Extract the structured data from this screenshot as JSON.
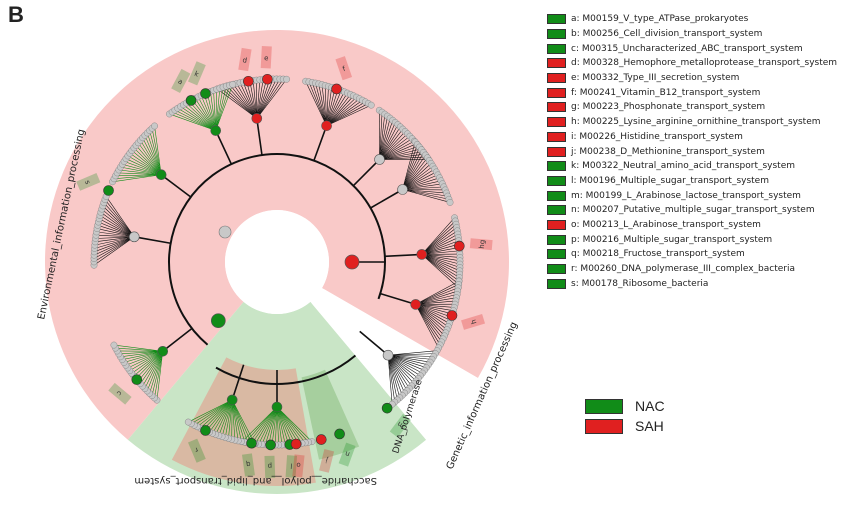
{
  "panel_label": "B",
  "colors": {
    "nac": "#118c18",
    "sah": "#e02020",
    "env_sector": "#f9c9c8",
    "gen_sector": "#c9e5c6",
    "sac_sector": "#d9b9a3",
    "dna_sector": "#a6cf9e",
    "node_gray": "#c8c8c8",
    "edge": "#111111"
  },
  "sectors": {
    "environmental": "Environmental_information_processing",
    "genetic": "Genetic_information_processing",
    "saccharide": "Saccharide__polyol__and_lipid_transport_system",
    "dna_polymerase": "DNA_polymerase"
  },
  "legend": {
    "items": [
      {
        "letter": "a",
        "color": "nac",
        "label": "a: M00159_V_type_ATPase_prokaryotes"
      },
      {
        "letter": "b",
        "color": "nac",
        "label": "b: M00256_Cell_division_transport_system"
      },
      {
        "letter": "c",
        "color": "nac",
        "label": "c: M00315_Uncharacterized_ABC_transport_system"
      },
      {
        "letter": "d",
        "color": "sah",
        "label": "d: M00328_Hemophore_metalloprotease_transport_system"
      },
      {
        "letter": "e",
        "color": "sah",
        "label": "e: M00332_Type_III_secretion_system"
      },
      {
        "letter": "f",
        "color": "sah",
        "label": "f: M00241_Vitamin_B12_transport_system"
      },
      {
        "letter": "g",
        "color": "sah",
        "label": "g: M00223_Phosphonate_transport_system"
      },
      {
        "letter": "h",
        "color": "sah",
        "label": "h: M00225_Lysine_arginine_ornithine_transport_system"
      },
      {
        "letter": "i",
        "color": "sah",
        "label": "i: M00226_Histidine_transport_system"
      },
      {
        "letter": "j",
        "color": "sah",
        "label": "j: M00238_D_Methionine_transport_system"
      },
      {
        "letter": "k",
        "color": "nac",
        "label": "k: M00322_Neutral_amino_acid_transport_system"
      },
      {
        "letter": "l",
        "color": "nac",
        "label": "l: M00196_Multiple_sugar_transport_system"
      },
      {
        "letter": "m",
        "color": "nac",
        "label": "m: M00199_L_Arabinose_lactose_transport_system"
      },
      {
        "letter": "n",
        "color": "nac",
        "label": "n: M00207_Putative_multiple_sugar_transport_system"
      },
      {
        "letter": "o",
        "color": "sah",
        "label": "o: M00213_L_Arabinose_transport_system"
      },
      {
        "letter": "p",
        "color": "nac",
        "label": "p: M00216_Multiple_sugar_transport_system"
      },
      {
        "letter": "q",
        "color": "nac",
        "label": "q: M00218_Fructose_transport_system"
      },
      {
        "letter": "r",
        "color": "nac",
        "label": "r: M00260_DNA_polymerase_III_complex_bacteria"
      },
      {
        "letter": "s",
        "color": "nac",
        "label": "s: M00178_Ribosome_bacteria"
      }
    ]
  },
  "class_legend": [
    {
      "name": "NAC",
      "color": "nac"
    },
    {
      "name": "SAH",
      "color": "sah"
    }
  ],
  "leaf_markers": [
    {
      "letter": "f",
      "color": "sah",
      "angle": 199
    },
    {
      "letter": "e",
      "color": "sah",
      "angle": 177
    },
    {
      "letter": "d",
      "color": "sah",
      "angle": 171
    },
    {
      "letter": "k",
      "color": "nac",
      "angle": 157
    },
    {
      "letter": "a",
      "color": "nac",
      "angle": 152
    },
    {
      "letter": "s",
      "color": "nac",
      "angle": 113
    },
    {
      "letter": "hg",
      "color": "sah",
      "angle": 265
    },
    {
      "letter": "h",
      "color": "sah",
      "angle": 287
    },
    {
      "letter": "c",
      "color": "nac",
      "angle": 50
    },
    {
      "letter": "r",
      "color": "nac",
      "angle": 23
    },
    {
      "letter": "l",
      "color": "nac",
      "angle": 356
    },
    {
      "letter": "n",
      "color": "nac",
      "angle": 340
    },
    {
      "letter": "j",
      "color": "sah",
      "angle": 346
    },
    {
      "letter": "o",
      "color": "sah",
      "angle": 354
    },
    {
      "letter": "p",
      "color": "nac",
      "angle": 2
    },
    {
      "letter": "q",
      "color": "nac",
      "angle": 8
    },
    {
      "letter": "m",
      "color": "nac",
      "angle": 323
    }
  ],
  "clades": [
    {
      "angle": 200,
      "color": "sah"
    },
    {
      "angle": 172,
      "color": "sah"
    },
    {
      "angle": 155,
      "color": "nac"
    },
    {
      "angle": 127,
      "color": "nac"
    },
    {
      "angle": 267,
      "color": "sah"
    },
    {
      "angle": 287,
      "color": "sah"
    },
    {
      "angle": 100,
      "color": "gray"
    },
    {
      "angle": 52,
      "color": "nac"
    },
    {
      "angle": 0,
      "color": "nac"
    },
    {
      "angle": 18,
      "color": "nac"
    },
    {
      "angle": 225,
      "color": "gray"
    },
    {
      "angle": 310,
      "color": "gray"
    },
    {
      "angle": 240,
      "color": "gray"
    }
  ]
}
